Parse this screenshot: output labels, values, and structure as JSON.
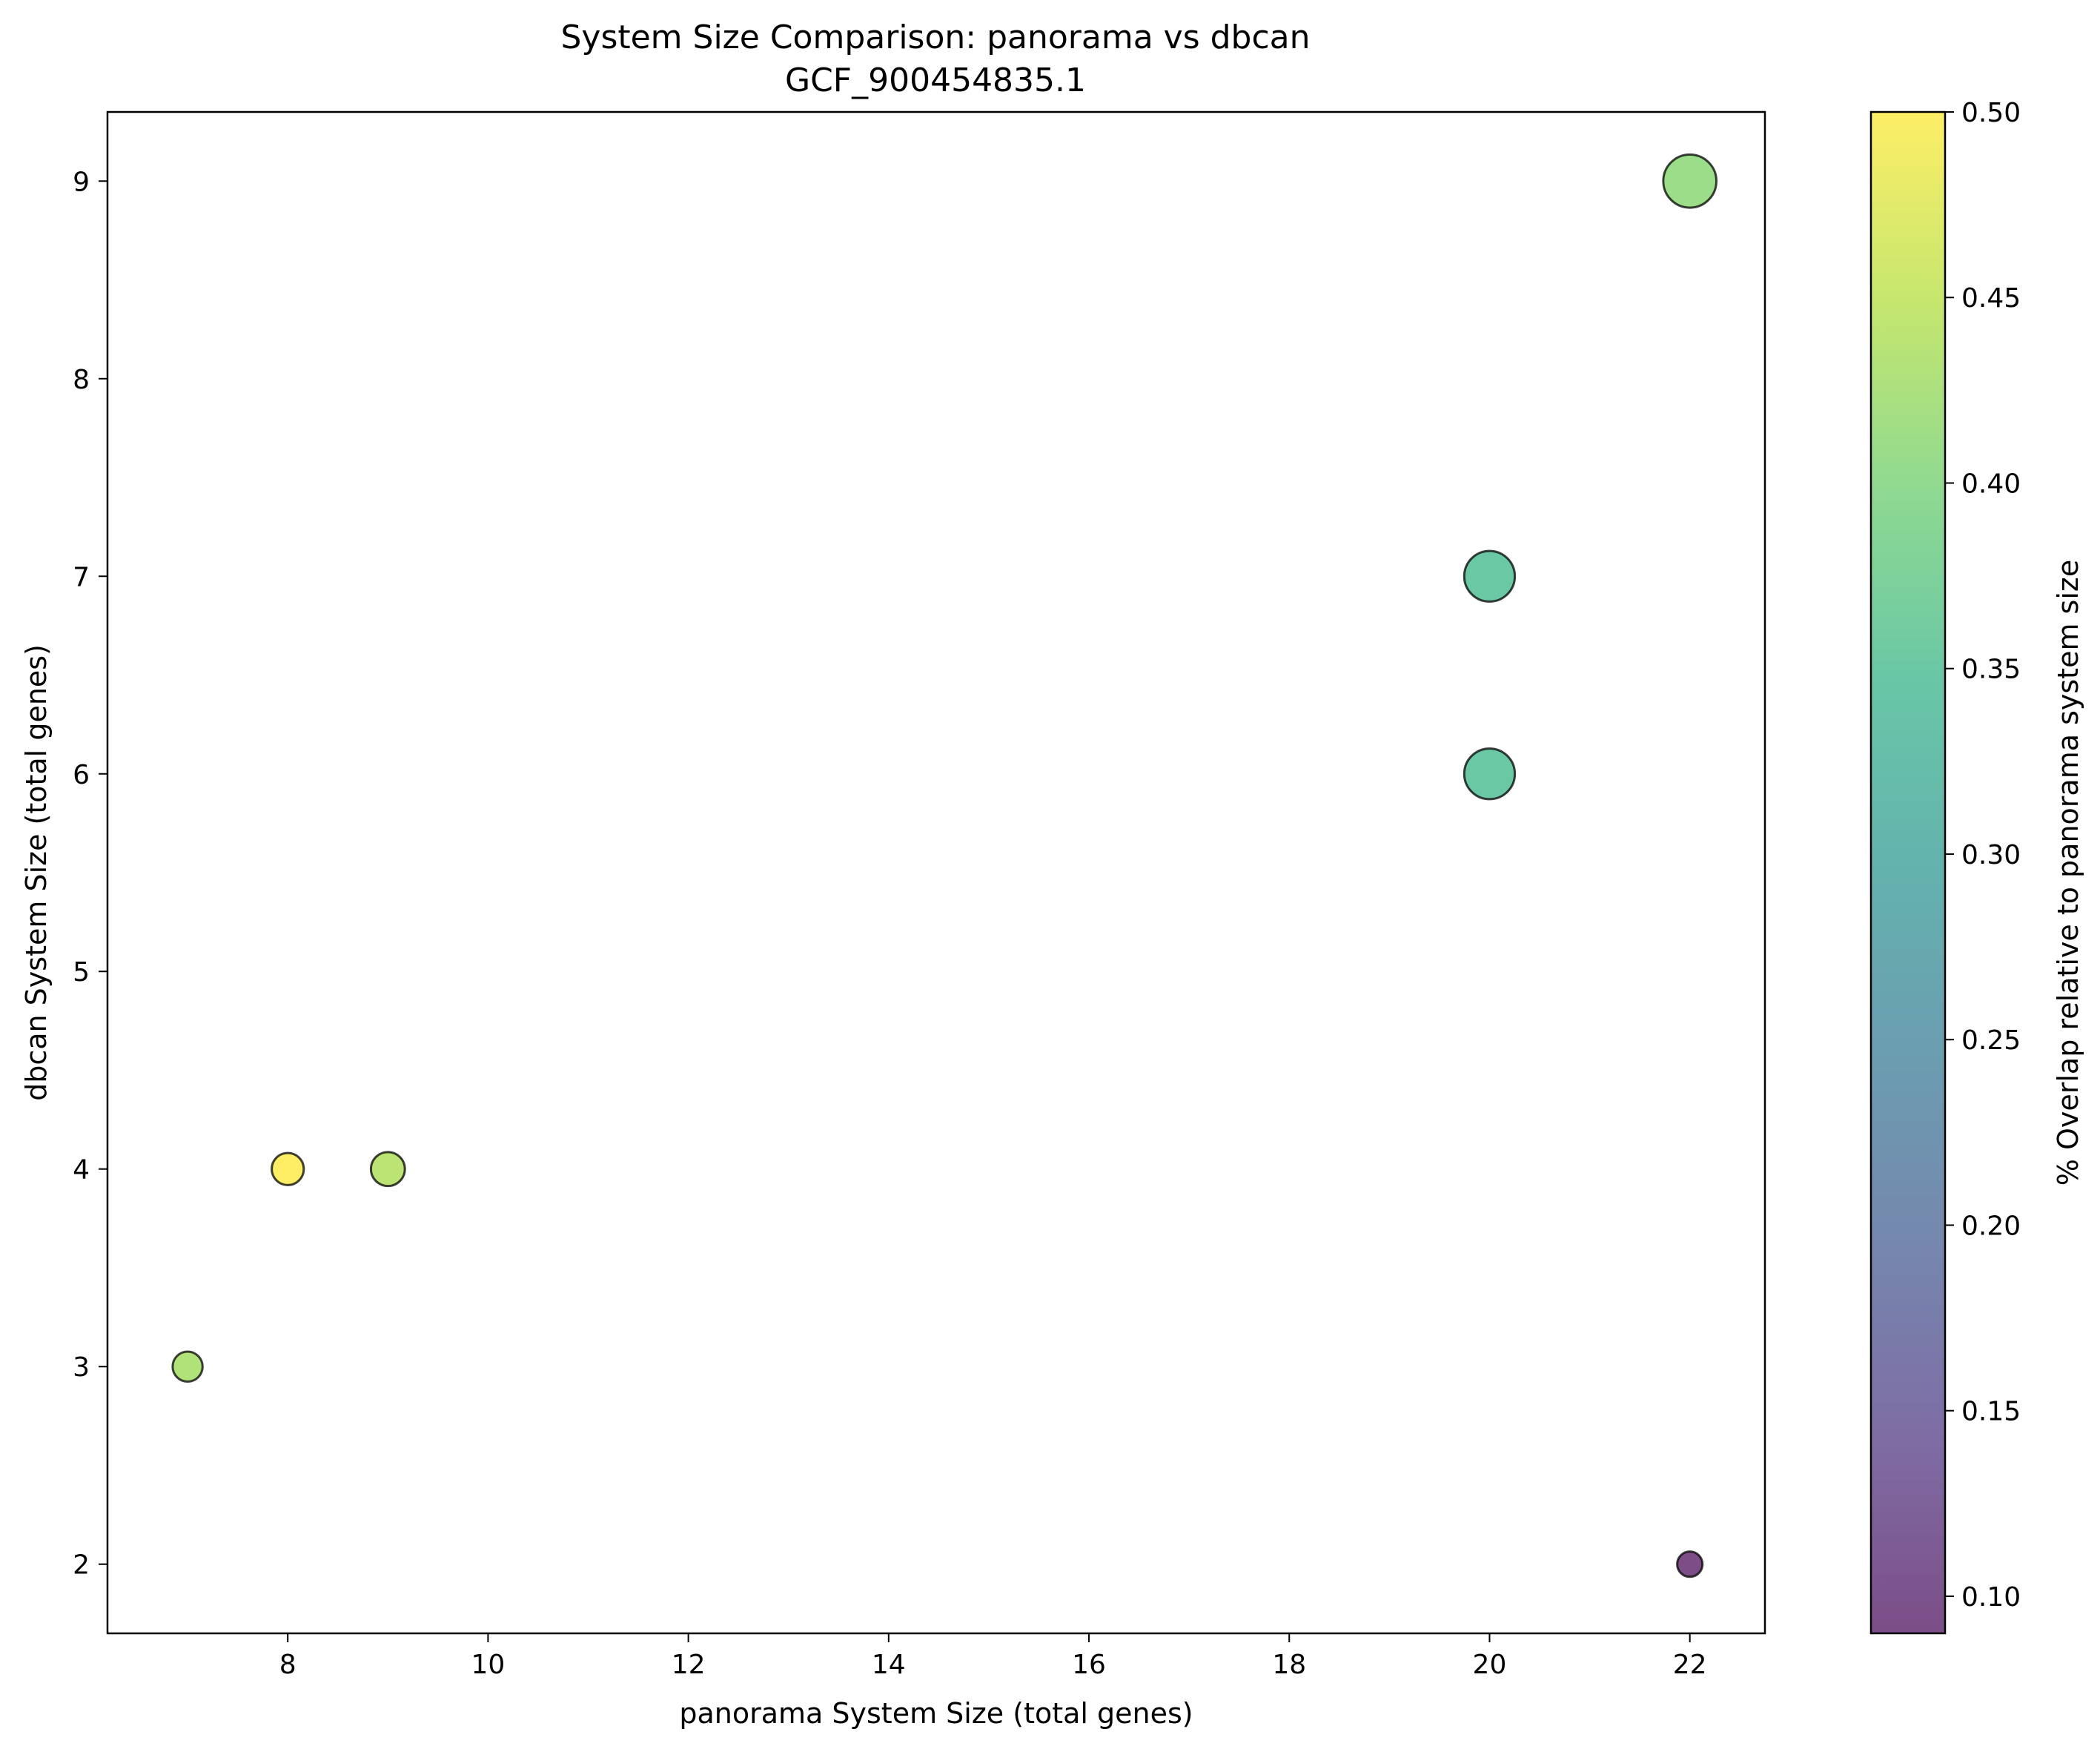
{
  "chart_data": {
    "type": "scatter",
    "title": "System Size Comparison: panorama vs dbcan",
    "subtitle": "GCF_900454835.1",
    "xlabel": "panorama System Size (total genes)",
    "ylabel": "dbcan System Size (total genes)",
    "xlim": [
      6.2,
      22.75
    ],
    "ylim": [
      1.65,
      9.35
    ],
    "xticks": [
      8,
      10,
      12,
      14,
      16,
      18,
      20,
      22
    ],
    "yticks": [
      2,
      3,
      4,
      5,
      6,
      7,
      8,
      9
    ],
    "grid": false,
    "legend": "none",
    "points": [
      {
        "x": 7,
        "y": 3,
        "overlap": 0.43,
        "size": 7
      },
      {
        "x": 8,
        "y": 4,
        "overlap": 0.5,
        "size": 8
      },
      {
        "x": 9,
        "y": 4,
        "overlap": 0.44,
        "size": 9
      },
      {
        "x": 20,
        "y": 7,
        "overlap": 0.35,
        "size": 20
      },
      {
        "x": 20,
        "y": 6,
        "overlap": 0.35,
        "size": 20
      },
      {
        "x": 22,
        "y": 9,
        "overlap": 0.41,
        "size": 22
      },
      {
        "x": 22,
        "y": 2,
        "overlap": 0.09,
        "size": 5
      }
    ],
    "colorbar": {
      "label": "% Overlap relative to panorama system size",
      "range": [
        0.09,
        0.5
      ],
      "ticks": [
        "0.10",
        "0.15",
        "0.20",
        "0.25",
        "0.30",
        "0.35",
        "0.40",
        "0.45",
        "0.50"
      ],
      "colormap": "viridis",
      "alpha": 0.7
    },
    "marker_edge_color": "#000000"
  }
}
